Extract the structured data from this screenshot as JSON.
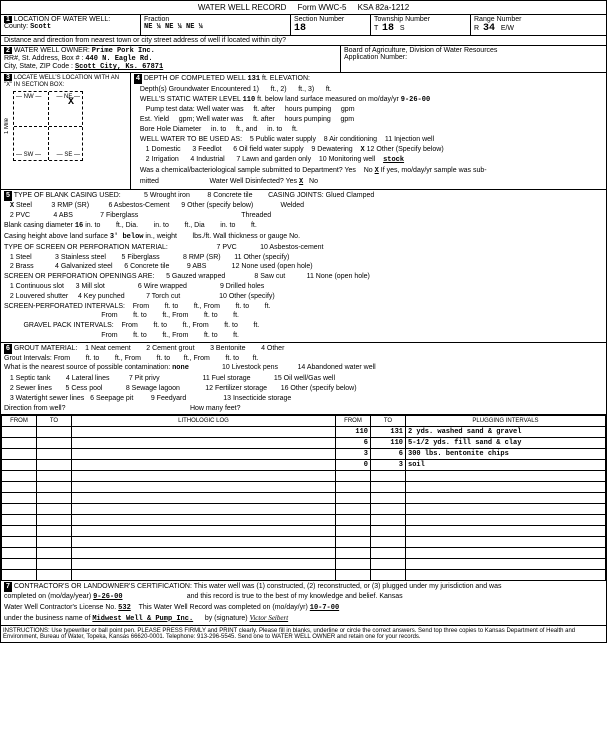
{
  "form_title": "WATER WELL RECORD",
  "form_num": "Form WWC-5",
  "ksa": "KSA 82a-1212",
  "s1": {
    "label": "LOCATION OF WATER WELL:",
    "county_label": "County:",
    "county": "Scott",
    "fraction_label": "Fraction",
    "fraction": "NE ¼   NE   ¼   NE  ¼",
    "section_label": "Section Number",
    "section": "18",
    "township_label": "Township Number",
    "township": "18",
    "township_dir": "S",
    "range_label": "Range Number",
    "range": "34",
    "range_dir": "E/W",
    "distance_label": "Distance and direction from nearest town or city street address of well if located within city?"
  },
  "s2": {
    "label": "WATER WELL OWNER:",
    "owner": "Prime Pork Inc.",
    "rr_label": "RR#, St. Address, Box # :",
    "addr": "440 N. Eagle Rd.",
    "city_label": "City, State, ZIP Code    :",
    "city": "Scott City, Ks.  67871",
    "board": "Board of Agriculture, Division of Water Resources",
    "app_label": "Application Number:"
  },
  "s3": {
    "label": "LOCATE WELL'S LOCATION WITH AN \"X\" IN SECTION BOX:",
    "mile": "1 Mile"
  },
  "s4": {
    "label": "DEPTH OF COMPLETED WELL",
    "depth": "131",
    "depth_unit": "ft. ELEVATION:",
    "gw_label": "Depth(s) Groundwater Encountered",
    "gw1": "1)",
    "gw2": "ft., 2)",
    "gw3": "ft., 3)",
    "gw4": "ft.",
    "static_label": "WELL'S STATIC WATER LEVEL",
    "static": "110",
    "static_unit": "ft. below land surface measured on mo/day/yr",
    "static_date": "9-26-00",
    "pump_test": "Pump test data:  Well water was",
    "est_yield": "Est. Yield",
    "gpm_after": "ft. after",
    "hours_pumping": "hours pumping",
    "gpm": "gpm",
    "bore": "Bore Hole Diameter",
    "bore_in": "in. to",
    "bore_ft": "ft., and",
    "bore_into": "in. to",
    "bore_ft2": "ft.",
    "use_label": "WELL WATER TO BE USED AS:",
    "use1": "1  Domestic",
    "use2": "2  Irrigation",
    "use3": "3  Feedlot",
    "use4": "4  Industrial",
    "use5": "5  Public water supply",
    "use6": "6  Oil field water supply",
    "use7": "7  Lawn and garden only",
    "use8": "8  Air conditioning",
    "use9": "9  Dewatering",
    "use10": "10  Monitoring well",
    "use11": "11  Injection well",
    "use12": "12  Other (Specify below)",
    "use_other": "stock",
    "chem_label": "Was a chemical/bacteriological sample submitted to Department? Yes",
    "chem_no": "No",
    "chem_x": "X",
    "chem_if": "If yes, mo/day/yr sample was sub-",
    "mitted": "mitted",
    "disinfect": "Water Well Disinfected?  Yes",
    "dis_x": "X",
    "dis_no": "No"
  },
  "s5": {
    "label": "TYPE OF BLANK CASING USED:",
    "c1": "Steel",
    "c1x": "X",
    "c2": "2  PVC",
    "c3": "3  RMP (SR)",
    "c4": "4  ABS",
    "c5": "5  Wrought iron",
    "c6": "6  Asbestos-Cement",
    "c7": "7  Fiberglass",
    "c8": "8  Concrete tile",
    "c9": "9  Other (specify below)",
    "joints": "CASING JOINTS: Glued       Clamped",
    "welded": "Welded",
    "threaded": "Threaded",
    "diam_label": "Blank casing diameter",
    "diam": "16",
    "diam_in": "in. to",
    "diam_ft": "ft., Dia.",
    "diam_in2": "in. to",
    "diam_ft2": "ft., Dia",
    "diam_in3": "in. to",
    "diam_ft3": "ft.",
    "height_label": "Casing height above land surface",
    "height": "3' below",
    "height_in": "in., weight",
    "height_lbs": "lbs./ft. Wall thickness or gauge No.",
    "screen_label": "TYPE OF SCREEN OR PERFORATION MATERIAL:",
    "sc1": "1  Steel",
    "sc2": "2  Brass",
    "sc3": "3  Stainless steel",
    "sc4": "4  Galvanized steel",
    "sc5": "5  Fiberglass",
    "sc6": "6  Concrete tile",
    "sc7": "7  PVC",
    "sc8": "8  RMP (SR)",
    "sc9": "9  ABS",
    "sc10": "10  Asbestos-cement",
    "sc11": "11  Other (specify)",
    "sc12": "12  None used (open hole)",
    "open_label": "SCREEN OR PERFORATION OPENINGS ARE:",
    "op1": "1  Continuous slot",
    "op2": "2  Louvered shutter",
    "op3": "3  Mill slot",
    "op4": "4  Key punched",
    "op5": "5  Gauzed wrapped",
    "op6": "6  Wire wrapped",
    "op7": "7  Torch cut",
    "op8": "8  Saw cut",
    "op9": "9  Drilled holes",
    "op10": "10  Other (specify)",
    "op11": "11  None (open hole)",
    "perf_label": "SCREEN-PERFORATED INTERVALS:",
    "gravel_label": "GRAVEL PACK INTERVALS:",
    "from": "From",
    "ft_to": "ft. to",
    "ft_from": "ft., From",
    "ft": "ft."
  },
  "s6": {
    "label": "GROUT MATERIAL:",
    "g1": "1  Neat cement",
    "g2": "2  Cement grout",
    "g3": "3  Bentonite",
    "g4": "4  Other",
    "grout_int": "Grout Intervals:   From",
    "ft_to": "ft. to",
    "ft_from": "ft., From",
    "contam_label": "What is the nearest source of possible contamination:",
    "contam": "none",
    "ct1": "1  Septic tank",
    "ct2": "2  Sewer lines",
    "ct3": "3  Watertight sewer lines",
    "ct4": "4  Lateral lines",
    "ct5": "5  Cess pool",
    "ct6": "6  Seepage pit",
    "ct7": "7  Pit privy",
    "ct8": "8  Sewage lagoon",
    "ct9": "9  Feedyard",
    "ct10": "10  Livestock pens",
    "ct11": "11  Fuel storage",
    "ct12": "12  Fertilizer storage",
    "ct13": "13  Insecticide storage",
    "ct14": "14  Abandoned water well",
    "ct15": "15  Oil well/Gas well",
    "ct16": "16  Other (specify below)",
    "dir_label": "Direction from well?",
    "howmany": "How many feet?"
  },
  "log": {
    "h1": "FROM",
    "h2": "TO",
    "h3": "LITHOLOGIC LOG",
    "h4": "FROM",
    "h5": "TO",
    "h6": "PLUGGING INTERVALS",
    "rows": [
      {
        "f": "",
        "t": "",
        "l": "",
        "pf": "110",
        "pt": "131",
        "pi": "2 yds. washed sand & gravel"
      },
      {
        "f": "",
        "t": "",
        "l": "",
        "pf": "6",
        "pt": "110",
        "pi": "5-1/2 yds. fill sand & clay"
      },
      {
        "f": "",
        "t": "",
        "l": "",
        "pf": "3",
        "pt": "6",
        "pi": "300 lbs. bentonite chips"
      },
      {
        "f": "",
        "t": "",
        "l": "",
        "pf": "0",
        "pt": "3",
        "pi": "soil"
      }
    ]
  },
  "s7": {
    "label": "CONTRACTOR'S OR LANDOWNER'S CERTIFICATION: This water well was (1) constructed, (2) reconstructed, or (3) plugged under my jurisdiction and was",
    "completed": "completed on (mo/day/year)",
    "date": "9-26-00",
    "record_true": "and this record is true to the best of my knowledge and belief. Kansas",
    "license": "Water Well Contractor's License No.",
    "license_no": "532",
    "wwr_completed": "This Water Well Record was completed on (mo/day/yr)",
    "wwr_date": "10-7-00",
    "business": "under the business name of",
    "business_name": "Midwest Well & Pump Inc.",
    "by_sig": "by (signature)",
    "signature": "Victor Seibert"
  },
  "instructions": "INSTRUCTIONS: Use typewriter or ball point pen. PLEASE PRESS FIRMLY and PRINT clearly. Please fill in blanks, underline or circle the correct answers. Send top three copies to Kansas Department of Health and Environment, Bureau of Water, Topeka, Kansas 66620-0001. Telephone: 913-296-5545. Send one to WATER WELL OWNER and retain one for your records."
}
